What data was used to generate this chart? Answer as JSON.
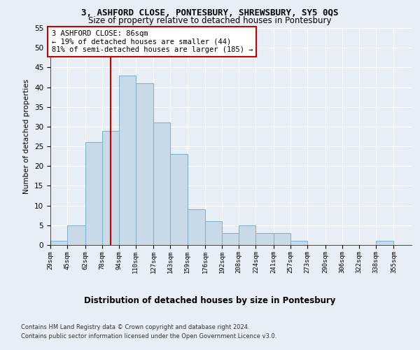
{
  "title1": "3, ASHFORD CLOSE, PONTESBURY, SHREWSBURY, SY5 0QS",
  "title2": "Size of property relative to detached houses in Pontesbury",
  "xlabel": "Distribution of detached houses by size in Pontesbury",
  "ylabel": "Number of detached properties",
  "bins": [
    "29sqm",
    "45sqm",
    "62sqm",
    "78sqm",
    "94sqm",
    "110sqm",
    "127sqm",
    "143sqm",
    "159sqm",
    "176sqm",
    "192sqm",
    "208sqm",
    "224sqm",
    "241sqm",
    "257sqm",
    "273sqm",
    "290sqm",
    "306sqm",
    "322sqm",
    "338sqm",
    "355sqm"
  ],
  "bar_heights": [
    1,
    5,
    26,
    29,
    43,
    41,
    31,
    23,
    9,
    6,
    3,
    5,
    3,
    3,
    1,
    0,
    0,
    0,
    0,
    1,
    0
  ],
  "bar_color": "#c9d9e8",
  "bar_edge_color": "#7aaec8",
  "property_line_x": 86,
  "bins_left_edges": [
    29,
    45,
    62,
    78,
    94,
    110,
    127,
    143,
    159,
    176,
    192,
    208,
    224,
    241,
    257,
    273,
    290,
    306,
    322,
    338,
    355
  ],
  "annotation_text": "3 ASHFORD CLOSE: 86sqm\n← 19% of detached houses are smaller (44)\n81% of semi-detached houses are larger (185) →",
  "annotation_box_color": "#ffffff",
  "annotation_box_edge": "#cc0000",
  "footer1": "Contains HM Land Registry data © Crown copyright and database right 2024.",
  "footer2": "Contains public sector information licensed under the Open Government Licence v3.0.",
  "ylim": [
    0,
    55
  ],
  "yticks": [
    0,
    5,
    10,
    15,
    20,
    25,
    30,
    35,
    40,
    45,
    50,
    55
  ],
  "bg_color": "#e8eef5",
  "plot_bg_color": "#e8eef5",
  "grid_color": "#ffffff",
  "red_line_color": "#cc0000",
  "title1_fontsize": 9.0,
  "title2_fontsize": 8.5
}
